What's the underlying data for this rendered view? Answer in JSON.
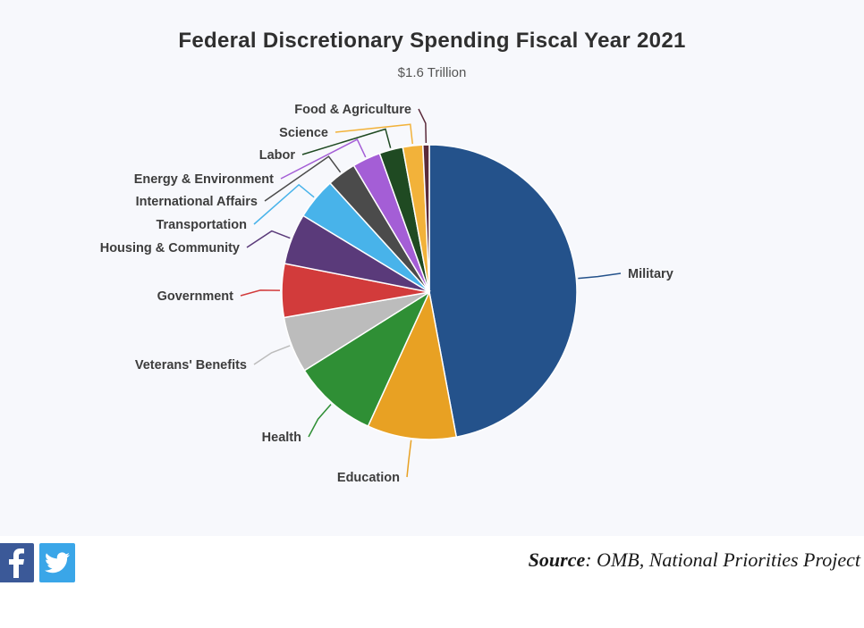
{
  "chart_data": {
    "type": "pie",
    "title": "Federal Discretionary Spending Fiscal Year 2021",
    "subtitle": "$1.6 Trillion",
    "slices": [
      {
        "label": "Military",
        "value": 47.3,
        "color": "#24528b"
      },
      {
        "label": "Education",
        "value": 9.8,
        "color": "#e8a123"
      },
      {
        "label": "Health",
        "value": 9.3,
        "color": "#2f8f35"
      },
      {
        "label": "Veterans' Benefits",
        "value": 6.2,
        "color": "#bcbcbc"
      },
      {
        "label": "Government",
        "value": 5.9,
        "color": "#d23b3b"
      },
      {
        "label": "Housing & Community",
        "value": 5.6,
        "color": "#5a3a7a"
      },
      {
        "label": "Transportation",
        "value": 4.6,
        "color": "#48b3ea"
      },
      {
        "label": "International Affairs",
        "value": 3.2,
        "color": "#4b4b4b"
      },
      {
        "label": "Energy & Environment",
        "value": 3.1,
        "color": "#a45ed6"
      },
      {
        "label": "Labor",
        "value": 2.6,
        "color": "#1f4a22"
      },
      {
        "label": "Science",
        "value": 2.2,
        "color": "#f2b23a"
      },
      {
        "label": "Food & Agriculture",
        "value": 0.7,
        "color": "#5a2a3a"
      }
    ]
  },
  "footer": {
    "facebook_icon": "facebook-icon",
    "twitter_icon": "twitter-icon",
    "source_label": "Source",
    "source_text": ": OMB, National Priorities Project"
  }
}
